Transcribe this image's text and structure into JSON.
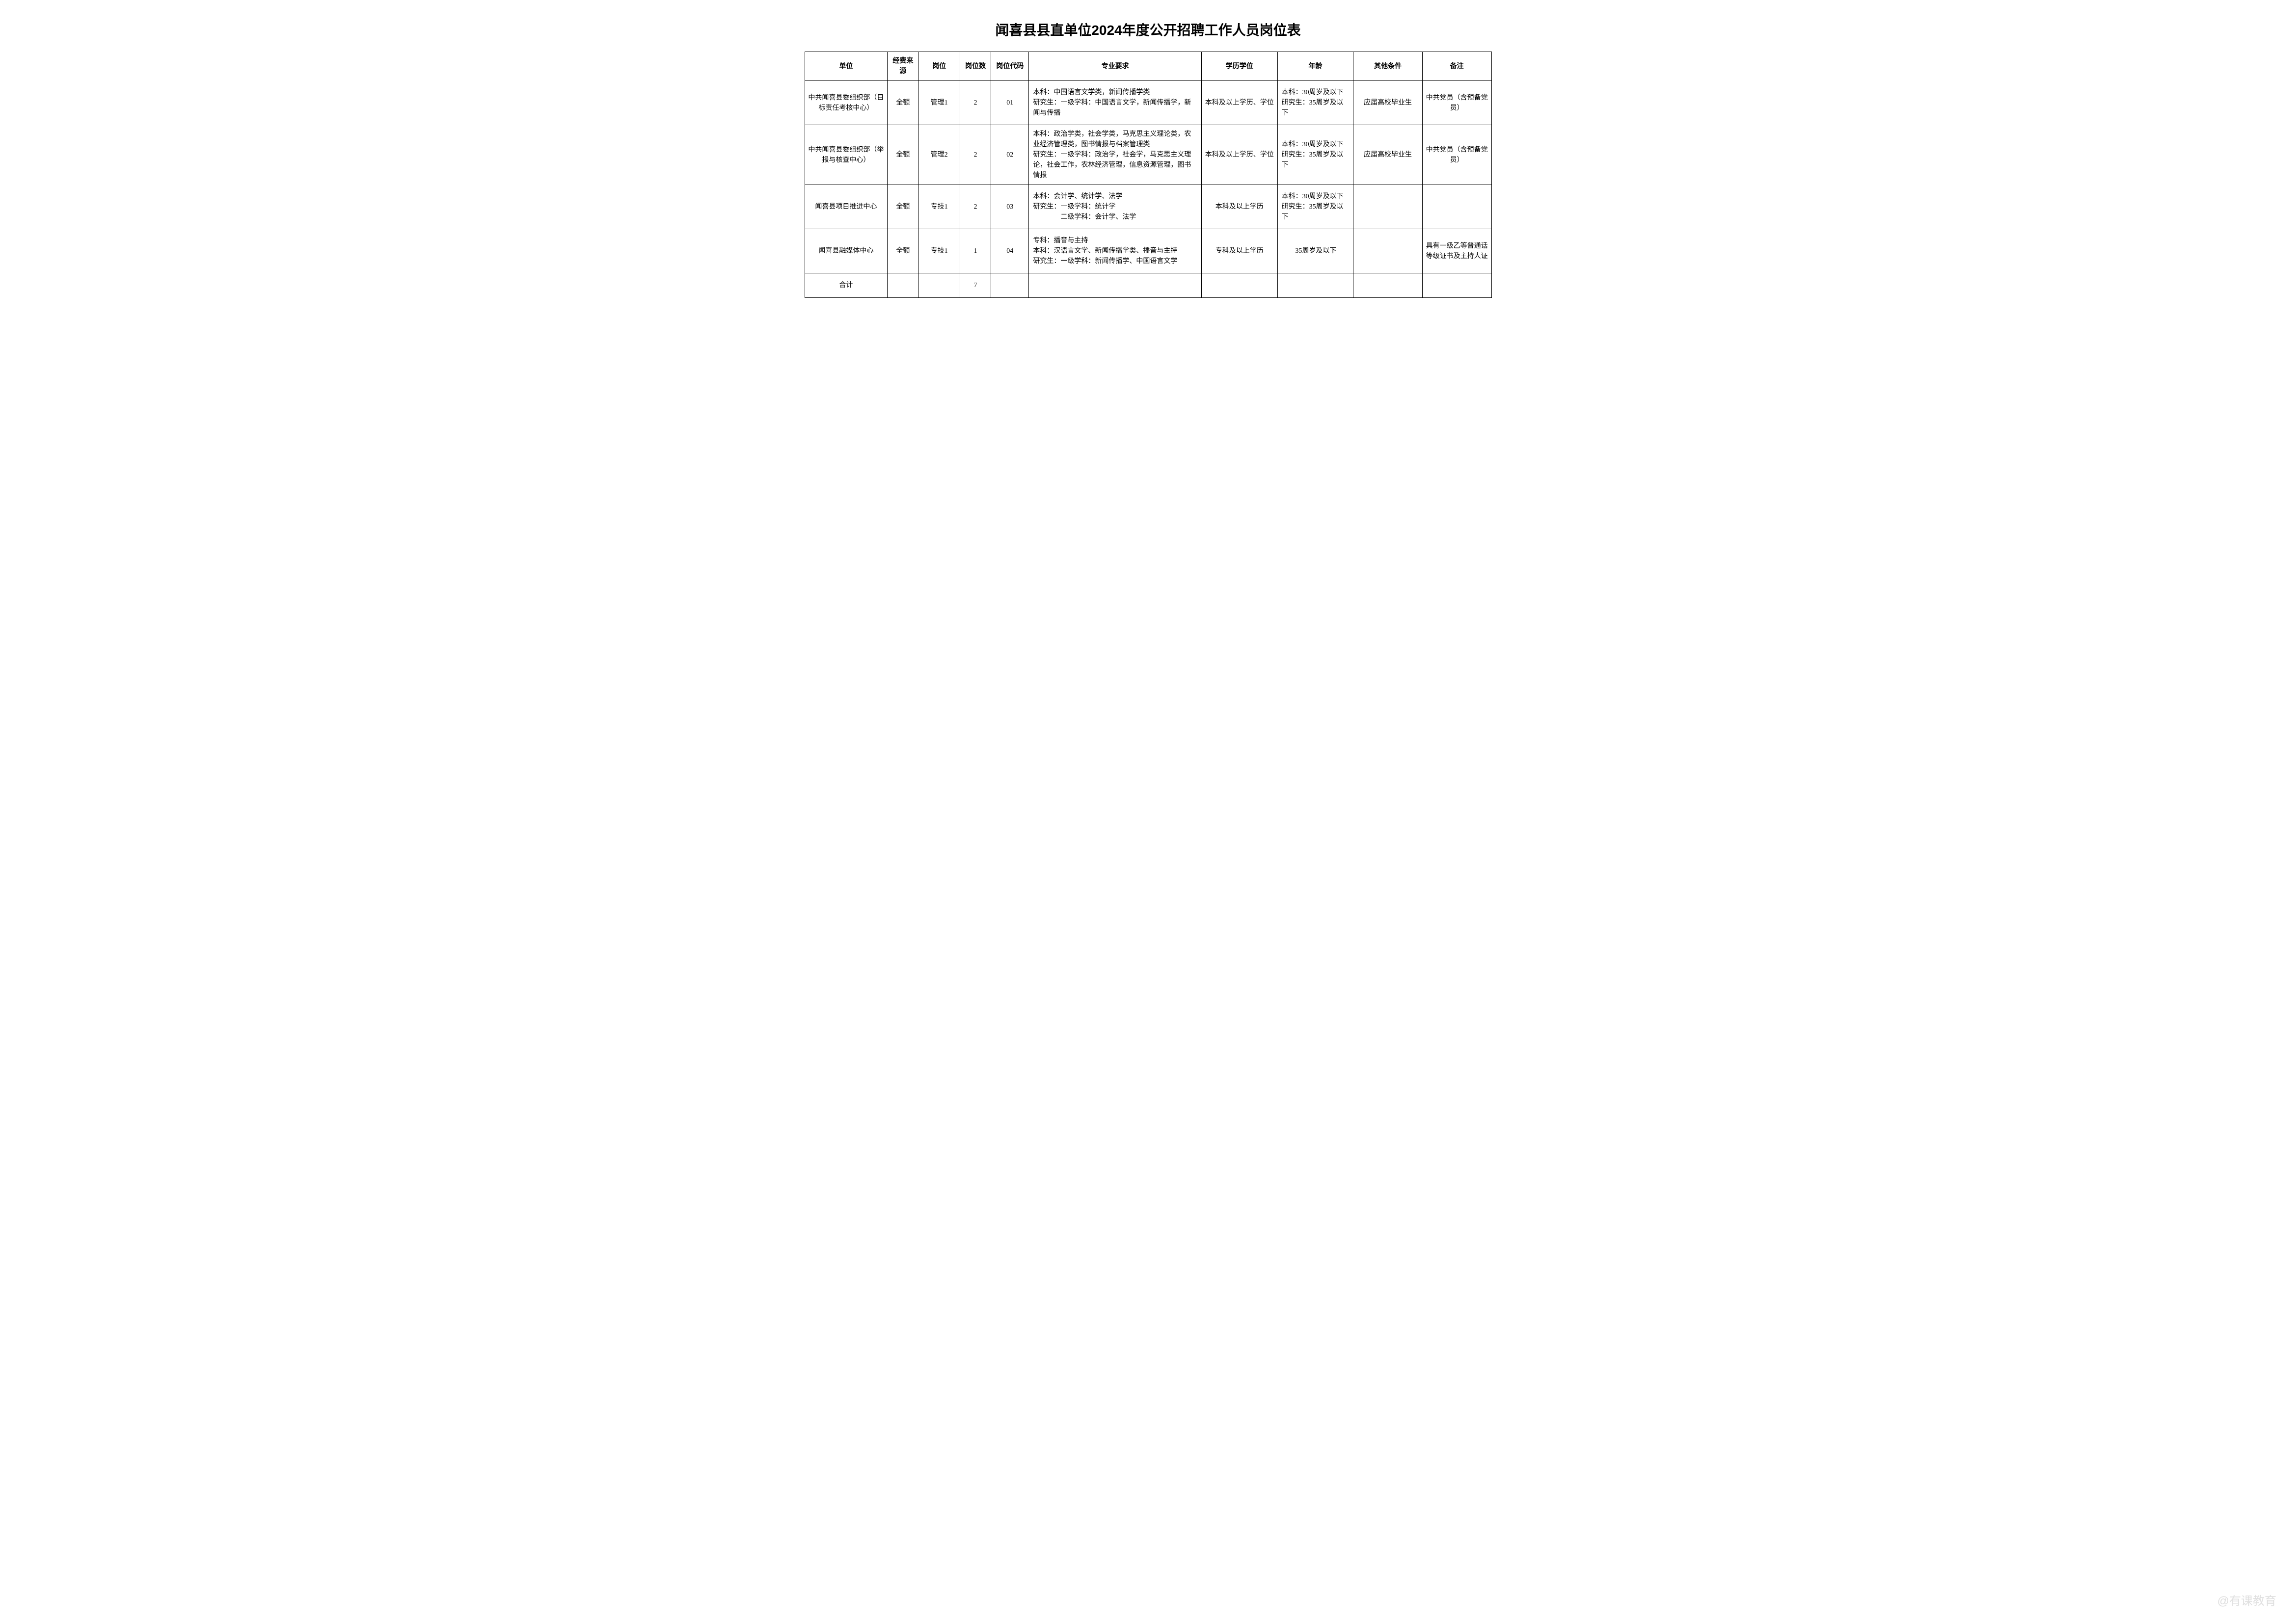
{
  "title": "闻喜县县直单位2024年度公开招聘工作人员岗位表",
  "headers": {
    "unit": "单位",
    "funding": "经费来源",
    "position": "岗位",
    "count": "岗位数",
    "code": "岗位代码",
    "major": "专业要求",
    "education": "学历学位",
    "age": "年龄",
    "other": "其他条件",
    "remark": "备注"
  },
  "rows": [
    {
      "unit": "中共闻喜县委组织部（目标责任考核中心）",
      "funding": "全额",
      "position": "管理1",
      "count": "2",
      "code": "01",
      "major": "本科：中国语言文学类，新闻传播学类\n研究生：一级学科：中国语言文学，新闻传播学，新闻与传播",
      "education": "本科及以上学历、学位",
      "age": "本科：30周岁及以下\n研究生：35周岁及以下",
      "other": "应届高校毕业生",
      "remark": "中共党员（含预备党员）"
    },
    {
      "unit": "中共闻喜县委组织部（举报与核查中心）",
      "funding": "全额",
      "position": "管理2",
      "count": "2",
      "code": "02",
      "major": "本科：政治学类，社会学类，马克思主义理论类，农业经济管理类，图书情报与档案管理类\n研究生：一级学科：政治学，社会学，马克思主义理论，社会工作，农林经济管理，信息资源管理，图书情报",
      "education": "本科及以上学历、学位",
      "age": "本科：30周岁及以下\n研究生：35周岁及以下",
      "other": "应届高校毕业生",
      "remark": "中共党员（含预备党员）"
    },
    {
      "unit": "闻喜县项目推进中心",
      "funding": "全额",
      "position": "专技1",
      "count": "2",
      "code": "03",
      "major": "本科：会计学、统计学、法学\n研究生：一级学科：统计学\n　　　　二级学科：会计学、法学",
      "education": "本科及以上学历",
      "age": "本科：30周岁及以下\n研究生：35周岁及以下",
      "other": "",
      "remark": ""
    },
    {
      "unit": "闻喜县融媒体中心",
      "funding": "全额",
      "position": "专技1",
      "count": "1",
      "code": "04",
      "major": "专科：播音与主持\n本科：汉语言文学、新闻传播学类、播音与主持\n研究生：一级学科：新闻传播学、中国语言文学",
      "education": "专科及以上学历",
      "age": "35周岁及以下",
      "other": "",
      "remark": "具有一级乙等普通话等级证书及主持人证"
    }
  ],
  "total": {
    "label": "合计",
    "count": "7"
  },
  "watermark": "@有课教育"
}
